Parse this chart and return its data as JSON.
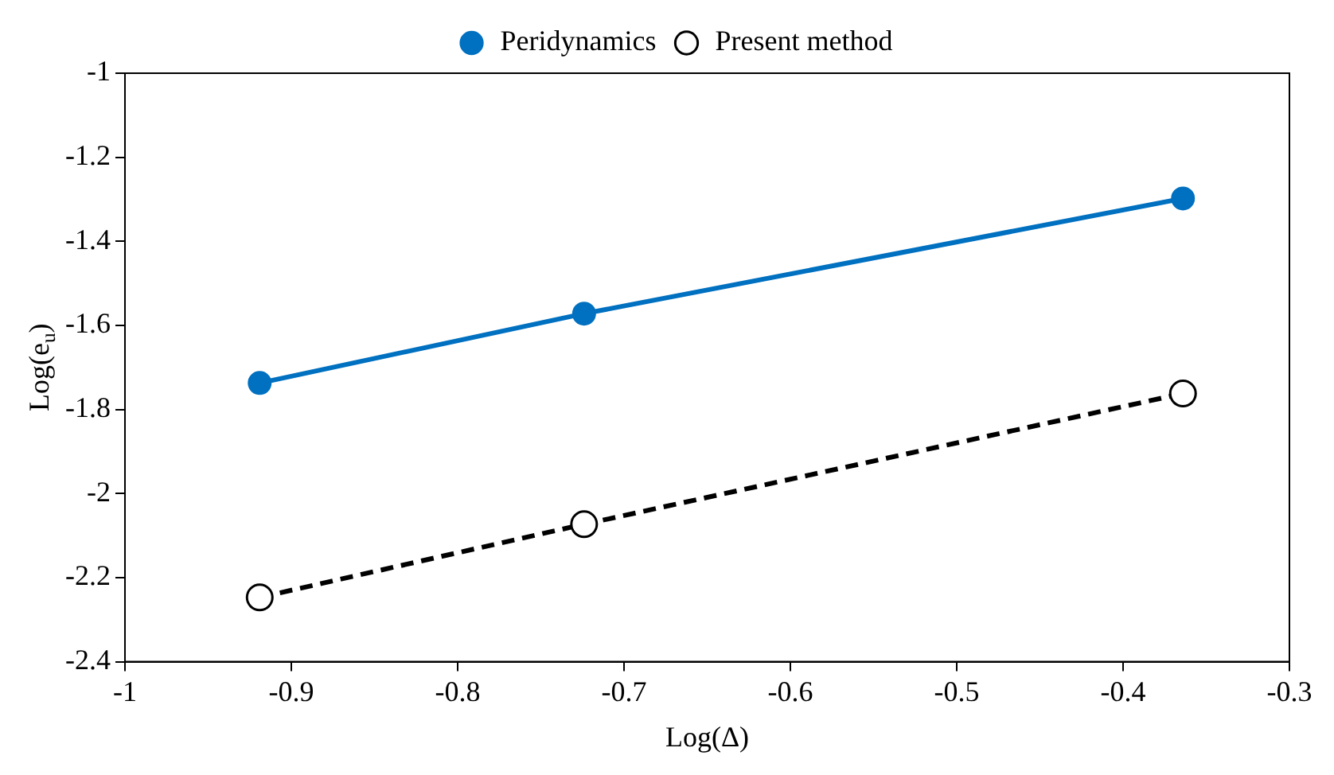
{
  "chart_data": {
    "type": "line",
    "xlabel": "Log(Δ)",
    "ylabel": "Log(e$_{u}$)",
    "series": [
      {
        "name": "Peridynamics",
        "color": "#0070c0",
        "x": [
          -0.919,
          -0.724,
          -0.364
        ],
        "values": [
          -1.737,
          -1.572,
          -1.298
        ],
        "marker": "circle",
        "line_style": "solid"
      },
      {
        "name": "Present method",
        "color": "#000000",
        "x": [
          -0.919,
          -0.724,
          -0.364
        ],
        "values": [
          -2.247,
          -2.073,
          -1.762
        ],
        "marker": "circle",
        "line_style": "dashed"
      }
    ],
    "xlim": [
      -1,
      -0.3
    ],
    "xticks": [
      -1,
      -0.9,
      -0.8,
      -0.7,
      -0.6,
      -0.5,
      -0.4,
      -0.3
    ],
    "ylim": [
      -2.4,
      -1
    ],
    "yticks": [
      -2.4,
      -2.2,
      -2,
      -1.8,
      -1.6,
      -1.4,
      -1.2,
      -1
    ],
    "grid": false,
    "legend": "top"
  }
}
